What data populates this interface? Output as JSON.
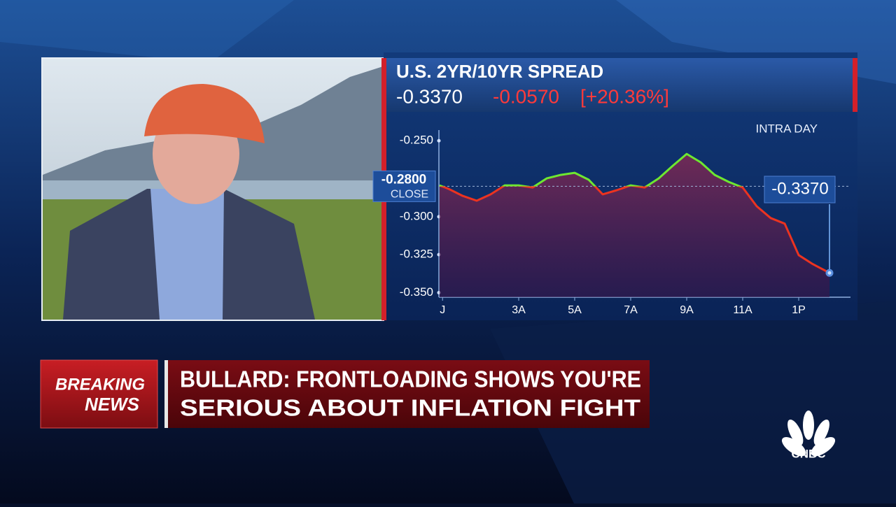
{
  "chart_data": {
    "type": "line",
    "title": "U.S. 2YR/10YR SPREAD",
    "last_value": {
      "value": -0.337,
      "label": "-0.3370"
    },
    "change": {
      "value": -0.057,
      "label": "-0.0570"
    },
    "percent_change": {
      "value": 20.36,
      "label": "[+20.36%]"
    },
    "period_label": "INTRA DAY",
    "close": {
      "value": -0.28,
      "label": "-0.2800"
    },
    "close_text": "CLOSE",
    "x": [
      0.17,
      0.5,
      1.0,
      1.5,
      2.0,
      2.5,
      3.0,
      3.5,
      4.0,
      4.5,
      5.0,
      5.5,
      6.0,
      6.5,
      7.0,
      7.5,
      8.0,
      8.5,
      9.0,
      9.5,
      10.0,
      10.5,
      11.0,
      11.5,
      12.0,
      12.5,
      13.0,
      13.5,
      14.1
    ],
    "series": [
      {
        "color": "#6ee830",
        "below_close_color": "#ec3320",
        "values": [
          -0.2794,
          -0.2817,
          -0.2863,
          -0.2895,
          -0.2853,
          -0.2794,
          -0.2794,
          -0.2808,
          -0.2748,
          -0.2725,
          -0.2711,
          -0.2757,
          -0.2853,
          -0.2826,
          -0.2794,
          -0.2808,
          -0.2748,
          -0.2665,
          -0.2587,
          -0.2642,
          -0.2725,
          -0.2771,
          -0.2808,
          -0.2931,
          -0.3009,
          -0.3046,
          -0.3253,
          -0.3312,
          -0.337
        ]
      }
    ],
    "xlim": [
      0.1,
      14.85
    ],
    "xticks": [
      {
        "value": 0.28,
        "label": "J"
      },
      {
        "value": 3,
        "label": "3A"
      },
      {
        "value": 5,
        "label": "5A"
      },
      {
        "value": 7,
        "label": "7A"
      },
      {
        "value": 9,
        "label": "9A"
      },
      {
        "value": 11,
        "label": "11A"
      },
      {
        "value": 13,
        "label": "1P"
      }
    ],
    "ylim": [
      -0.353,
      -0.243
    ],
    "yticks": [
      {
        "value": -0.25,
        "label": "-0.250"
      },
      {
        "value": -0.3,
        "label": "-0.300"
      },
      {
        "value": -0.325,
        "label": "-0.325"
      },
      {
        "value": -0.35,
        "label": "-0.350"
      }
    ],
    "grid": false
  },
  "breaking": {
    "line1": "BREAKING",
    "line2": "NEWS"
  },
  "headline": {
    "lines": [
      "BULLARD: FRONTLOADING SHOWS YOU'RE",
      "SERIOUS ABOUT INFLATION FIGHT"
    ]
  },
  "network": "CNBC"
}
